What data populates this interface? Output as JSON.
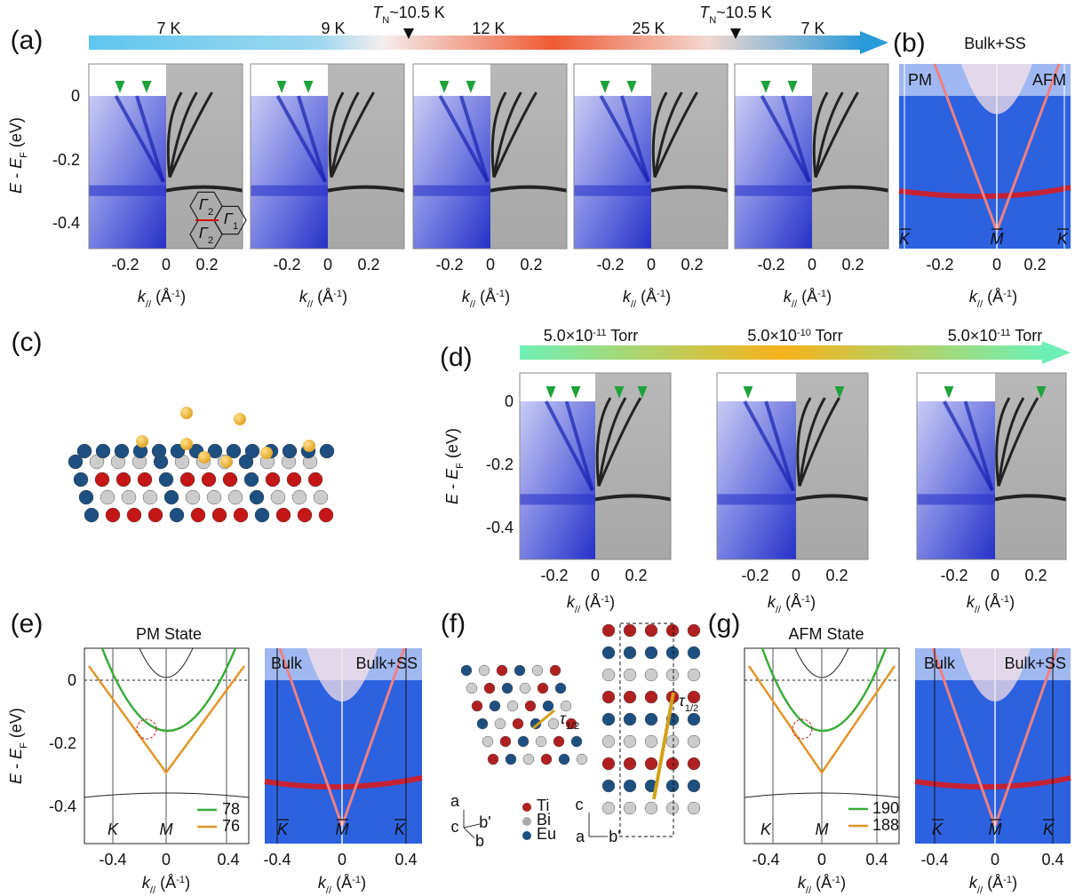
{
  "figure": {
    "panel_a": {
      "label": "(a)",
      "arrow_labels": [
        "7 K",
        "9 K",
        "12 K",
        "25 K",
        "7 K"
      ],
      "transitions": [
        {
          "var": "T",
          "sub": "N",
          "text": "~10.5 K"
        },
        {
          "var": "T",
          "sub": "N",
          "text": "~10.5 K"
        }
      ],
      "ylabel": {
        "var": "E",
        "text": " - ",
        "var2": "E",
        "sub": "F",
        "text2": " (eV)"
      },
      "yticks": [
        "0",
        "-0.2",
        "-0.4"
      ],
      "inset": [
        {
          "var": "Γ",
          "sub": "2"
        },
        {
          "var": "Γ",
          "sub": "1"
        },
        {
          "var": "Γ",
          "sub": "2"
        }
      ],
      "subpanels": [
        {
          "xticks": [
            "-0.2",
            "0",
            "0.2"
          ],
          "xlabel": {
            "var": "k",
            "sub": "//",
            "text": " (Å",
            "sup": "-1",
            "text2": ")"
          }
        },
        {
          "xticks": [
            "-0.2",
            "0",
            "0.2"
          ],
          "xlabel": {
            "var": "k",
            "sub": "//",
            "text": " (Å",
            "sup": "-1",
            "text2": ")"
          }
        },
        {
          "xticks": [
            "-0.2",
            "0",
            "0.2"
          ],
          "xlabel": {
            "var": "k",
            "sub": "//",
            "text": " (Å",
            "sup": "-1",
            "text2": ")"
          }
        },
        {
          "xticks": [
            "-0.2",
            "0",
            "0.2"
          ],
          "xlabel": {
            "var": "k",
            "sub": "//",
            "text": " (Å",
            "sup": "-1",
            "text2": ")"
          }
        },
        {
          "xticks": [
            "-0.2",
            "0",
            "0.2"
          ],
          "xlabel": {
            "var": "k",
            "sub": "//",
            "text": " (Å",
            "sup": "-1",
            "text2": ")"
          }
        }
      ]
    },
    "panel_b": {
      "label": "(b)",
      "title": "Bulk+SS",
      "corner_labels": [
        "PM",
        "AFM"
      ],
      "points": [
        "K",
        "M",
        "K"
      ],
      "xticks": [
        "-0.2",
        "0",
        "0.2"
      ],
      "xlabel": {
        "var": "k",
        "sub": "//",
        "text": " (Å",
        "sup": "-1",
        "text2": ")"
      }
    },
    "panel_c": {
      "label": "(c)"
    },
    "panel_d": {
      "label": "(d)",
      "pressures": [
        {
          "text": "5.0×10",
          "sup": "-11",
          "text2": " Torr"
        },
        {
          "text": "5.0×10",
          "sup": "-10",
          "text2": " Torr"
        },
        {
          "text": "5.0×10",
          "sup": "-11",
          "text2": " Torr"
        }
      ],
      "ylabel": {
        "var": "E",
        "text": " - ",
        "var2": "E",
        "sub": "F",
        "text2": " (eV)"
      },
      "yticks": [
        "0",
        "-0.2",
        "-0.4"
      ],
      "subpanels": [
        {
          "xticks": [
            "-0.2",
            "0",
            "0.2"
          ],
          "xlabel": {
            "var": "k",
            "sub": "//",
            "text": " (Å",
            "sup": "-1",
            "text2": ")"
          }
        },
        {
          "xticks": [
            "-0.2",
            "0",
            "0.2"
          ],
          "xlabel": {
            "var": "k",
            "sub": "//",
            "text": " (Å",
            "sup": "-1",
            "text2": ")"
          }
        },
        {
          "xticks": [
            "-0.2",
            "0",
            "0.2"
          ],
          "xlabel": {
            "var": "k",
            "sub": "//",
            "text": " (Å",
            "sup": "-1",
            "text2": ")"
          }
        }
      ]
    },
    "panel_e": {
      "label": "(e)",
      "title": "PM State",
      "ylabel": {
        "var": "E",
        "text": " - ",
        "var2": "E",
        "sub": "F",
        "text2": " (eV)"
      },
      "yticks": [
        "0",
        "-0.2",
        "-0.4"
      ],
      "left": {
        "points": [
          "K",
          "M"
        ],
        "legend": [
          "78",
          "76"
        ],
        "xticks": [
          "-0.4",
          "0",
          "0.4"
        ],
        "xlabel": {
          "var": "k",
          "sub": "//",
          "text": " (Å",
          "sup": "-1",
          "text2": ")"
        }
      },
      "right": {
        "regions": [
          "Bulk",
          "Bulk+SS"
        ],
        "points": [
          "K",
          "M",
          "K"
        ],
        "xticks": [
          "-0.4",
          "0",
          "0.4"
        ],
        "xlabel": {
          "var": "k",
          "sub": "//",
          "text": " (Å",
          "sup": "-1",
          "text2": ")"
        }
      }
    },
    "panel_f": {
      "label": "(f)",
      "legend": [
        "Ti",
        "Bi",
        "Eu"
      ],
      "axes_left": [
        "a",
        "b'",
        "c",
        "b"
      ],
      "axes_right": [
        "c",
        "a",
        "b'"
      ],
      "vectors": [
        {
          "var": "τ",
          "sub": "1/2"
        },
        {
          "var": "τ",
          "sub": "1/2"
        }
      ]
    },
    "panel_g": {
      "label": "(g)",
      "title": "AFM State",
      "left": {
        "points": [
          "K",
          "M"
        ],
        "legend": [
          "190",
          "188"
        ],
        "xticks": [
          "-0.4",
          "0",
          "0.4"
        ],
        "xlabel": {
          "var": "k",
          "sub": "//",
          "text": " (Å",
          "sup": "-1",
          "text2": ")"
        }
      },
      "right": {
        "regions": [
          "Bulk",
          "Bulk+SS"
        ],
        "points": [
          "K",
          "M",
          "K"
        ],
        "xticks": [
          "-0.4",
          "0",
          "0.4"
        ],
        "xlabel": {
          "var": "k",
          "sub": "//",
          "text": " (Å",
          "sup": "-1",
          "text2": ")"
        }
      }
    }
  }
}
